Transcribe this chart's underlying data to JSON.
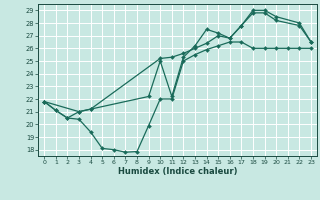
{
  "xlabel": "Humidex (Indice chaleur)",
  "xlim": [
    -0.5,
    23.5
  ],
  "ylim": [
    17.5,
    29.5
  ],
  "xticks": [
    0,
    1,
    2,
    3,
    4,
    5,
    6,
    7,
    8,
    9,
    10,
    11,
    12,
    13,
    14,
    15,
    16,
    17,
    18,
    19,
    20,
    21,
    22,
    23
  ],
  "yticks": [
    18,
    19,
    20,
    21,
    22,
    23,
    24,
    25,
    26,
    27,
    28,
    29
  ],
  "background_color": "#c8e8e2",
  "grid_color": "#ffffff",
  "line_color": "#1a6b5a",
  "line1_x": [
    0,
    1,
    2,
    3,
    4,
    5,
    6,
    7,
    8,
    9,
    10,
    11,
    12,
    13,
    14,
    15,
    16,
    17,
    18,
    19,
    20,
    21,
    22,
    23
  ],
  "line1_y": [
    21.8,
    21.1,
    20.5,
    20.4,
    19.4,
    18.1,
    18.0,
    17.8,
    17.85,
    19.9,
    22.0,
    22.0,
    25.0,
    25.5,
    25.9,
    26.2,
    26.5,
    26.5,
    26.0,
    26.0,
    26.0,
    26.0,
    26.0,
    26.0
  ],
  "line2_x": [
    0,
    1,
    2,
    3,
    4,
    9,
    10,
    11,
    12,
    13,
    14,
    15,
    16,
    17,
    18,
    19,
    20,
    22,
    23
  ],
  "line2_y": [
    21.8,
    21.1,
    20.5,
    21.0,
    21.2,
    22.2,
    25.0,
    22.2,
    25.3,
    26.2,
    27.5,
    27.2,
    26.8,
    27.8,
    28.8,
    28.8,
    28.2,
    27.8,
    26.5
  ],
  "line3_x": [
    0,
    3,
    4,
    10,
    11,
    12,
    13,
    14,
    15,
    16,
    17,
    18,
    19,
    20,
    22,
    23
  ],
  "line3_y": [
    21.8,
    21.0,
    21.2,
    25.2,
    25.3,
    25.6,
    26.0,
    26.4,
    27.0,
    26.8,
    27.8,
    29.0,
    29.0,
    28.5,
    28.0,
    26.5
  ]
}
